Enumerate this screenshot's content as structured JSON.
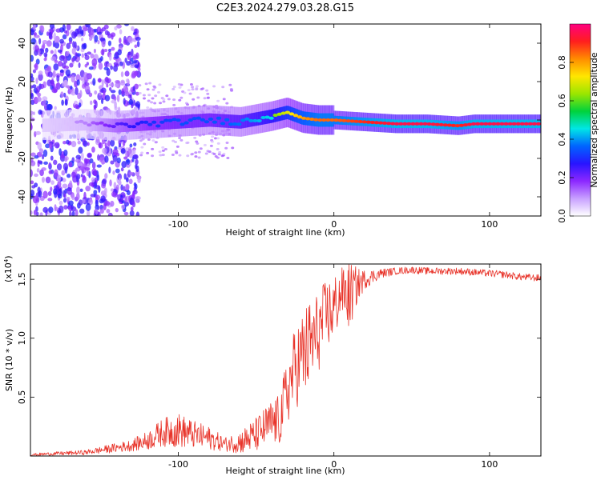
{
  "figure": {
    "title": "C2E3.2024.279.03.28.G15"
  },
  "chart_data": [
    {
      "type": "heatmap",
      "title": "C2E3.2024.279.03.28.G15",
      "xlabel": "Height of straight line (km)",
      "ylabel": "Frequency (Hz)",
      "xlim": [
        -195,
        133
      ],
      "ylim": [
        -50,
        50
      ],
      "xticks": [
        -100,
        0,
        100
      ],
      "yticks": [
        -40,
        -20,
        0,
        20,
        40
      ],
      "colorbar": {
        "label": "Normalized spectral amplitude",
        "range": [
          0,
          1
        ],
        "ticks": [
          "0.0",
          "0.2",
          "0.4",
          "0.6",
          "0.8"
        ],
        "colors": [
          "#ffffff",
          "#c8a0ff",
          "#8c28ff",
          "#2814ff",
          "#0064ff",
          "#00e6e6",
          "#00d23c",
          "#9be600",
          "#ffe600",
          "#ff8c00",
          "#ff1e1e",
          "#ff0080"
        ]
      },
      "ridge": {
        "description_x": [
          -195,
          -160,
          -140,
          -120,
          -100,
          -80,
          -60,
          -40,
          -30,
          -20,
          -10,
          0,
          20,
          40,
          60,
          80,
          90,
          110,
          133
        ],
        "frequency": [
          -3,
          -2,
          -3,
          -2,
          -1,
          0,
          -1,
          2,
          4,
          1,
          0,
          0,
          -1,
          -2,
          -2,
          -3,
          -2,
          -2,
          -2
        ],
        "amplitude": [
          0.1,
          0.15,
          0.3,
          0.4,
          0.45,
          0.45,
          0.5,
          0.6,
          0.7,
          0.8,
          0.85,
          0.85,
          0.9,
          0.95,
          0.95,
          0.9,
          0.95,
          0.95,
          0.95
        ]
      }
    },
    {
      "type": "line",
      "xlabel": "Height of straight line (km)",
      "ylabel": "SNR (10 * v/v)",
      "multiplier_label": "(x10",
      "multiplier_exp": "4",
      "multiplier_close": ")",
      "xlim": [
        -195,
        133
      ],
      "ylim": [
        0,
        1.63
      ],
      "xticks": [
        -100,
        0,
        100
      ],
      "yticks": [
        "0.5",
        "1.0",
        "1.5"
      ],
      "ytick_values": [
        0.5,
        1.0,
        1.5
      ],
      "line_color": "#e8342a",
      "series": [
        {
          "x": [
            -195,
            -180,
            -160,
            -150,
            -140,
            -130,
            -120,
            -110,
            -100,
            -90,
            -80,
            -70,
            -60,
            -50,
            -40,
            -35,
            -30,
            -25,
            -20,
            -15,
            -10,
            -5,
            0,
            5,
            10,
            15,
            20,
            30,
            40,
            50,
            60,
            70,
            80,
            90,
            100,
            110,
            120,
            133
          ],
          "y": [
            0.01,
            0.02,
            0.03,
            0.05,
            0.07,
            0.09,
            0.13,
            0.2,
            0.22,
            0.18,
            0.15,
            0.1,
            0.12,
            0.18,
            0.28,
            0.3,
            0.55,
            0.75,
            0.85,
            0.95,
            1.05,
            1.2,
            1.25,
            1.4,
            1.35,
            1.45,
            1.5,
            1.55,
            1.57,
            1.58,
            1.57,
            1.57,
            1.57,
            1.56,
            1.55,
            1.54,
            1.52,
            1.51
          ],
          "spread": [
            0.01,
            0.015,
            0.02,
            0.03,
            0.04,
            0.05,
            0.08,
            0.12,
            0.15,
            0.12,
            0.1,
            0.06,
            0.1,
            0.15,
            0.2,
            0.22,
            0.3,
            0.35,
            0.4,
            0.4,
            0.35,
            0.3,
            0.3,
            0.2,
            0.3,
            0.15,
            0.08,
            0.04,
            0.03,
            0.03,
            0.03,
            0.03,
            0.03,
            0.03,
            0.03,
            0.03,
            0.03,
            0.03
          ]
        }
      ]
    }
  ]
}
